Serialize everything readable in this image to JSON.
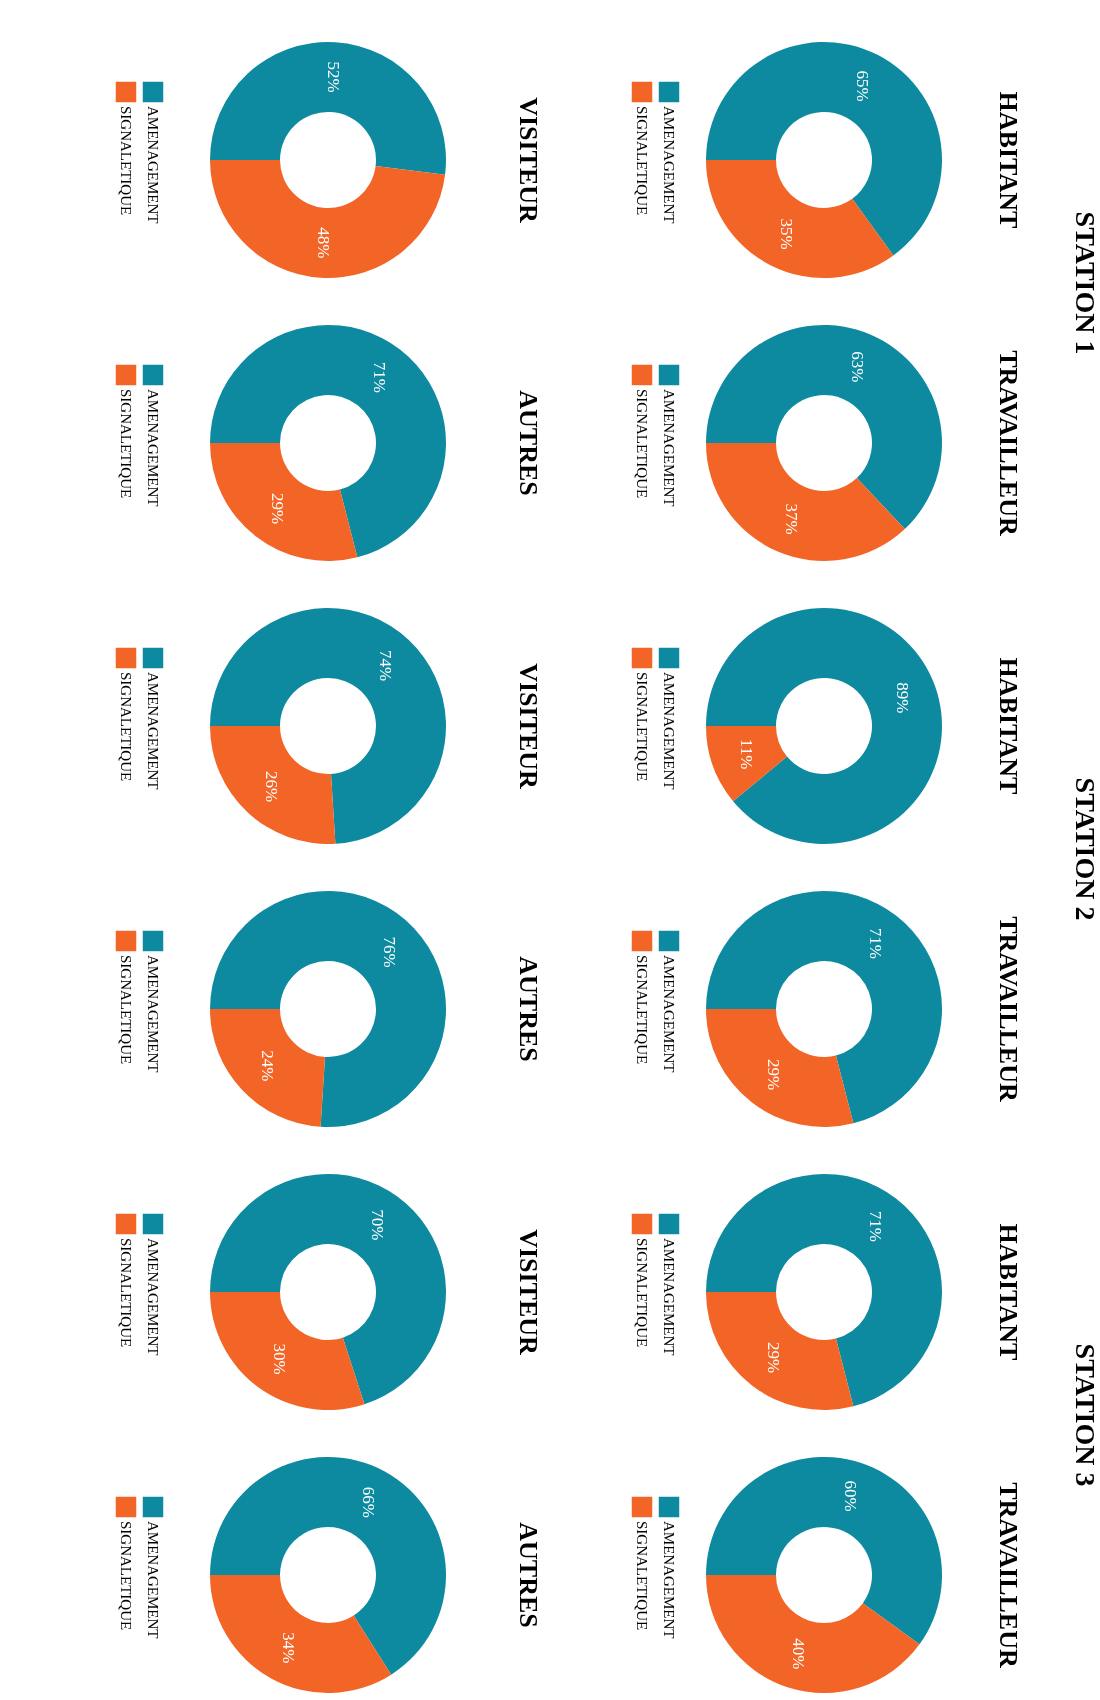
{
  "chart_data": [
    {
      "type": "donut",
      "title": "HABITANT",
      "annotations": [
        "STATION 1"
      ],
      "categories": [
        "AMENAGEMENT",
        "SIGNALETIQUE"
      ],
      "values": [
        65,
        35
      ],
      "colors": [
        "#0e8aa0",
        "#f26526"
      ],
      "value_labels": [
        "65%",
        "35%"
      ],
      "legend": "left"
    },
    {
      "type": "donut",
      "title": "TRAVAILLEUR",
      "categories": [
        "AMENAGEMENT",
        "SIGNALETIQUE"
      ],
      "values": [
        63,
        37
      ],
      "colors": [
        "#0e8aa0",
        "#f26526"
      ],
      "value_labels": [
        "63%",
        "37%"
      ],
      "legend": "left"
    },
    {
      "type": "donut",
      "title": "HABITANT",
      "annotations": [
        "STATION 2"
      ],
      "categories": [
        "AMENAGEMENT",
        "SIGNALETIQUE"
      ],
      "values": [
        89,
        11
      ],
      "colors": [
        "#0e8aa0",
        "#f26526"
      ],
      "value_labels": [
        "89%",
        "11%"
      ],
      "legend": "left"
    },
    {
      "type": "donut",
      "title": "TRAVAILLEUR",
      "categories": [
        "AMENAGEMENT",
        "SIGNALETIQUE"
      ],
      "values": [
        71,
        29
      ],
      "colors": [
        "#0e8aa0",
        "#f26526"
      ],
      "value_labels": [
        "71%",
        "29%"
      ],
      "legend": "left"
    },
    {
      "type": "donut",
      "title": "HABITANT",
      "annotations": [
        "STATION 3"
      ],
      "categories": [
        "AMENAGEMENT",
        "SIGNALETIQUE"
      ],
      "values": [
        71,
        29
      ],
      "colors": [
        "#0e8aa0",
        "#f26526"
      ],
      "value_labels": [
        "71%",
        "29%"
      ],
      "legend": "left"
    },
    {
      "type": "donut",
      "title": "TRAVAILLEUR",
      "categories": [
        "AMENAGEMENT",
        "SIGNALETIQUE"
      ],
      "values": [
        60,
        40
      ],
      "colors": [
        "#0e8aa0",
        "#f26526"
      ],
      "value_labels": [
        "60%",
        "40%"
      ],
      "legend": "left"
    },
    {
      "type": "donut",
      "title": "VISITEUR",
      "categories": [
        "AMENAGEMENT",
        "SIGNALETIQUE"
      ],
      "values": [
        52,
        48
      ],
      "colors": [
        "#0e8aa0",
        "#f26526"
      ],
      "value_labels": [
        "52%",
        "48%"
      ],
      "legend": "left"
    },
    {
      "type": "donut",
      "title": "AUTRES",
      "categories": [
        "AMENAGEMENT",
        "SIGNALETIQUE"
      ],
      "values": [
        71,
        29
      ],
      "colors": [
        "#0e8aa0",
        "#f26526"
      ],
      "value_labels": [
        "71%",
        "29%"
      ],
      "legend": "left"
    },
    {
      "type": "donut",
      "title": "VISITEUR",
      "categories": [
        "AMENAGEMENT",
        "SIGNALETIQUE"
      ],
      "values": [
        74,
        26
      ],
      "colors": [
        "#0e8aa0",
        "#f26526"
      ],
      "value_labels": [
        "74%",
        "26%"
      ],
      "legend": "left"
    },
    {
      "type": "donut",
      "title": "AUTRES",
      "categories": [
        "AMENAGEMENT",
        "SIGNALETIQUE"
      ],
      "values": [
        76,
        24
      ],
      "colors": [
        "#0e8aa0",
        "#f26526"
      ],
      "value_labels": [
        "76%",
        "24%"
      ],
      "legend": "left"
    },
    {
      "type": "donut",
      "title": "VISITEUR",
      "categories": [
        "AMENAGEMENT",
        "SIGNALETIQUE"
      ],
      "values": [
        70,
        30
      ],
      "colors": [
        "#0e8aa0",
        "#f26526"
      ],
      "value_labels": [
        "70%",
        "30%"
      ],
      "legend": "left"
    },
    {
      "type": "donut",
      "title": "AUTRES",
      "categories": [
        "AMENAGEMENT",
        "SIGNALETIQUE"
      ],
      "values": [
        66,
        34
      ],
      "colors": [
        "#0e8aa0",
        "#f26526"
      ],
      "value_labels": [
        "66%",
        "34%"
      ],
      "legend": "left"
    }
  ]
}
